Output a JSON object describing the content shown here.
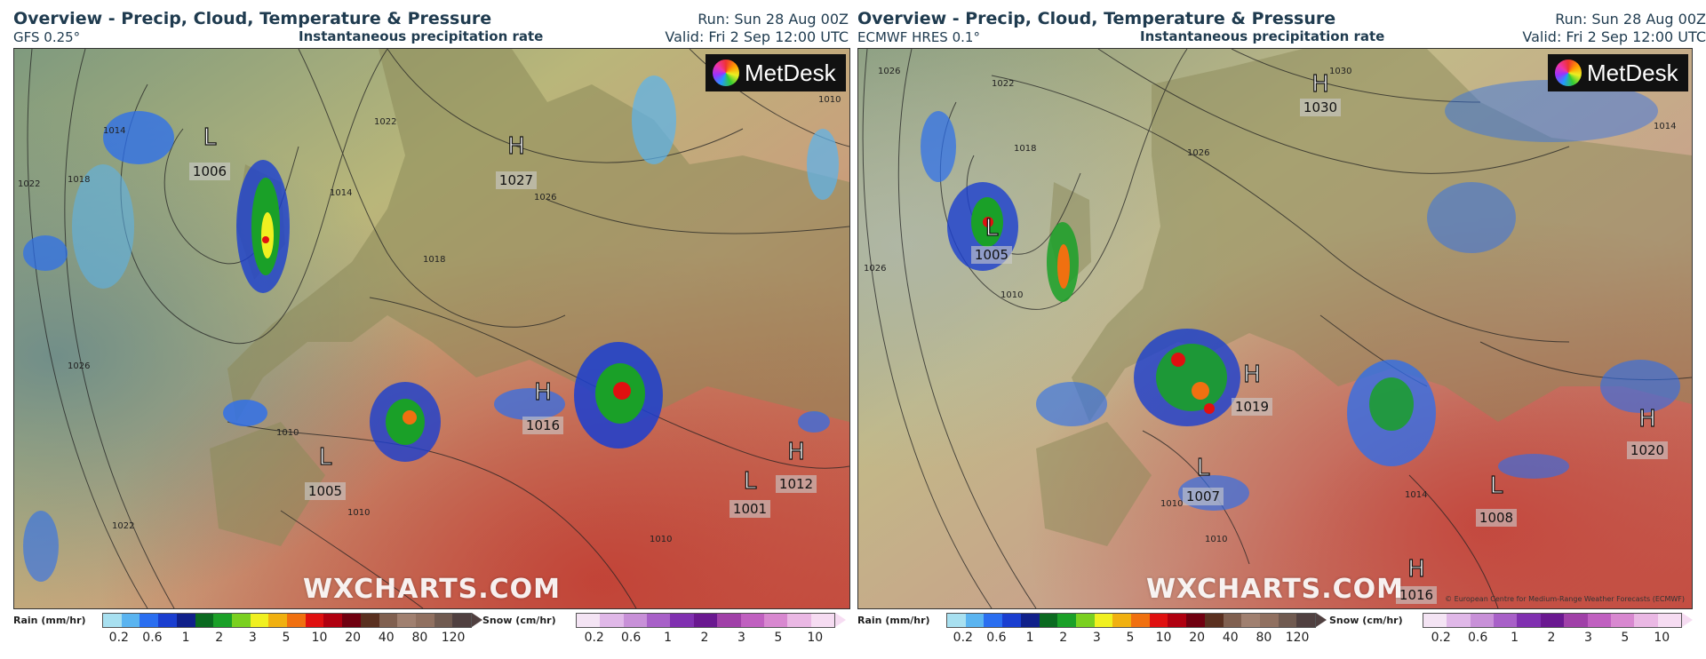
{
  "panels": [
    {
      "title": "Overview - Precip, Cloud, Temperature & Pressure",
      "model": "GFS 0.25°",
      "field": "Instantaneous precipitation rate",
      "run": "Run: Sun 28 Aug 00Z",
      "valid": "Valid: Fri 2 Sep 12:00 UTC",
      "logo": "MetDesk",
      "watermark": "WXCHARTS.COM",
      "credit": "",
      "pressure_centres": [
        {
          "type": "L",
          "value": "1006"
        },
        {
          "type": "H",
          "value": "1027"
        },
        {
          "type": "H",
          "value": "1016"
        },
        {
          "type": "L",
          "value": "1005"
        },
        {
          "type": "H",
          "value": "1012"
        },
        {
          "type": "L",
          "value": "1001"
        }
      ],
      "isobar_labels": [
        "1022",
        "1018",
        "1014",
        "1014",
        "1022",
        "1010",
        "1026",
        "1018",
        "1010",
        "1026",
        "1022",
        "1010",
        "1010"
      ]
    },
    {
      "title": "Overview - Precip, Cloud, Temperature & Pressure",
      "model": "ECMWF HRES 0.1°",
      "field": "Instantaneous precipitation rate",
      "run": "Run: Sun 28 Aug 00Z",
      "valid": "Valid: Fri 2 Sep 12:00 UTC",
      "logo": "MetDesk",
      "watermark": "WXCHARTS.COM",
      "credit": "© European Centre for Medium-Range Weather Forecasts (ECMWF)",
      "pressure_centres": [
        {
          "type": "H",
          "value": "1030"
        },
        {
          "type": "L",
          "value": "1005"
        },
        {
          "type": "H",
          "value": "1019"
        },
        {
          "type": "L",
          "value": "1007"
        },
        {
          "type": "H",
          "value": "1020"
        },
        {
          "type": "L",
          "value": "1008"
        },
        {
          "type": "H",
          "value": "1016"
        }
      ],
      "isobar_labels": [
        "1026",
        "1022",
        "1018",
        "1026",
        "1030",
        "1010",
        "1010",
        "1014",
        "1010",
        "1014",
        "1026"
      ]
    }
  ],
  "legends": {
    "rain": {
      "label": "Rain (mm/hr)",
      "ticks": [
        "0.2",
        "0.6",
        "1",
        "2",
        "3",
        "5",
        "10",
        "20",
        "40",
        "80",
        "120"
      ],
      "colors": [
        "#a8e0f0",
        "#5ab4f0",
        "#2a6ef0",
        "#1a3ed0",
        "#10208a",
        "#0a6a20",
        "#1aa028",
        "#7ad020",
        "#f0f020",
        "#f0b010",
        "#f07010",
        "#e01010",
        "#b00010",
        "#700010",
        "#5a3020",
        "#806050",
        "#a08070",
        "#907060",
        "#705a50",
        "#504040"
      ]
    },
    "snow": {
      "label": "Snow (cm/hr)",
      "ticks": [
        "0.2",
        "0.6",
        "1",
        "2",
        "3",
        "5",
        "10"
      ],
      "colors": [
        "#f4e4f4",
        "#e0b8e8",
        "#c890d8",
        "#a860c8",
        "#8030b0",
        "#6a1890",
        "#a040a8",
        "#c060c0",
        "#d888d0",
        "#eab8e4",
        "#f6dcf2"
      ]
    }
  }
}
